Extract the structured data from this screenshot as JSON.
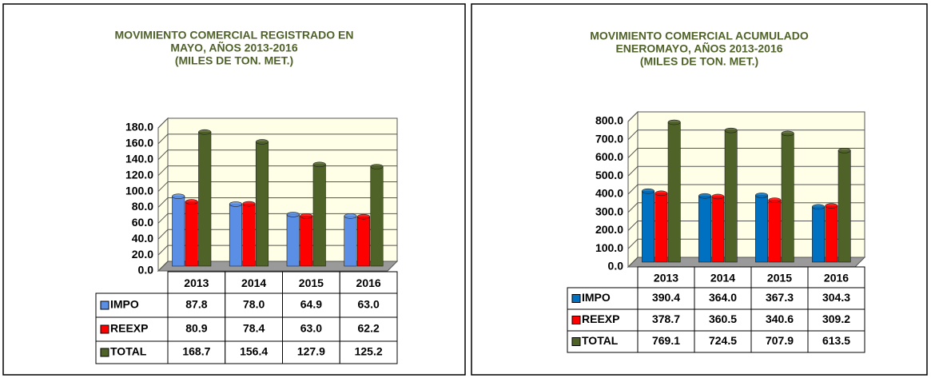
{
  "chart_data": [
    {
      "type": "bar",
      "title": [
        "MOVIMIENTO COMERCIAL REGISTRADO EN",
        "MAYO, AÑOS 2013-2016",
        "(MILES DE TON. MET.)"
      ],
      "categories": [
        "2013",
        "2014",
        "2015",
        "2016"
      ],
      "series": [
        {
          "name": "IMPO",
          "color": "#5b8fe6",
          "values": [
            87.8,
            78.0,
            64.9,
            63.0
          ],
          "value_labels": [
            "87.8",
            "78.0",
            "64.9",
            "63.0"
          ]
        },
        {
          "name": "REEXP",
          "color": "#ff0000",
          "values": [
            80.9,
            78.4,
            63.0,
            62.2
          ],
          "value_labels": [
            "80.9",
            "78.4",
            "63.0",
            "62.2"
          ]
        },
        {
          "name": "TOTAL",
          "color": "#4f6228",
          "values": [
            168.7,
            156.4,
            127.9,
            125.2
          ],
          "value_labels": [
            "168.7",
            "156.4",
            "127.9",
            "125.2"
          ]
        }
      ],
      "ylim": [
        0,
        180
      ],
      "yticks": [
        {
          "value": 0,
          "label": "0.0"
        },
        {
          "value": 20,
          "label": "20.0"
        },
        {
          "value": 40,
          "label": "40.0"
        },
        {
          "value": 60,
          "label": "60.0"
        },
        {
          "value": 80,
          "label": "80.0"
        },
        {
          "value": 100,
          "label": "100.0"
        },
        {
          "value": 120,
          "label": "120.0"
        },
        {
          "value": 140,
          "label": "140.0"
        },
        {
          "value": 160,
          "label": "160.0"
        },
        {
          "value": 180,
          "label": "180.0"
        }
      ],
      "grid": true
    },
    {
      "type": "bar",
      "title": [
        "MOVIMIENTO COMERCIAL ACUMULADO",
        "ENEROMAYO, AÑOS 2013-2016",
        "(MILES DE TON. MET.)"
      ],
      "categories": [
        "2013",
        "2014",
        "2015",
        "2016"
      ],
      "series": [
        {
          "name": "IMPO",
          "color": "#0070c0",
          "values": [
            390.4,
            364.0,
            367.3,
            304.3
          ],
          "value_labels": [
            "390.4",
            "364.0",
            "367.3",
            "304.3"
          ]
        },
        {
          "name": "REEXP",
          "color": "#ff0000",
          "values": [
            378.7,
            360.5,
            340.6,
            309.2
          ],
          "value_labels": [
            "378.7",
            "360.5",
            "340.6",
            "309.2"
          ]
        },
        {
          "name": "TOTAL",
          "color": "#4f6228",
          "values": [
            769.1,
            724.5,
            707.9,
            613.5
          ],
          "value_labels": [
            "769.1",
            "724.5",
            "707.9",
            "613.5"
          ]
        }
      ],
      "ylim": [
        0,
        800
      ],
      "yticks": [
        {
          "value": 0,
          "label": "0.0"
        },
        {
          "value": 100,
          "label": "100.0"
        },
        {
          "value": 200,
          "label": "200.0"
        },
        {
          "value": 300,
          "label": "300.0"
        },
        {
          "value": 400,
          "label": "400.0"
        },
        {
          "value": 500,
          "label": "500.0"
        },
        {
          "value": 600,
          "label": "600.0"
        },
        {
          "value": 700,
          "label": "700.0"
        },
        {
          "value": 800,
          "label": "800.0"
        }
      ],
      "grid": true
    }
  ]
}
